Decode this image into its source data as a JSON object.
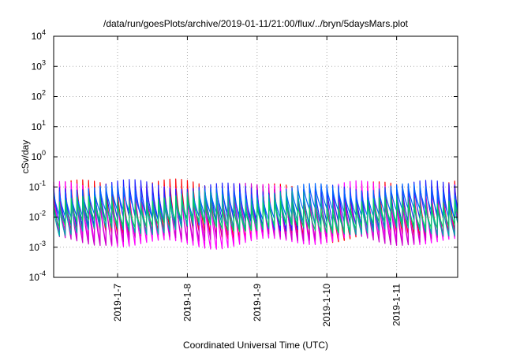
{
  "chart_data": {
    "type": "area",
    "title": "/data/run/goesPlots/archive/2019-01-11/21:00/flux/../bryn/5daysMars.plot",
    "xlabel": "Coordinated Universal Time (UTC)",
    "ylabel": "cSv/day",
    "yscale": "log",
    "ylim": [
      0.0001,
      10000
    ],
    "xlim": [
      "2019-01-06 02:00",
      "2019-01-11 21:00"
    ],
    "y_ticks": [
      {
        "base": "10",
        "exp": "4"
      },
      {
        "base": "10",
        "exp": "3"
      },
      {
        "base": "10",
        "exp": "2"
      },
      {
        "base": "10",
        "exp": "1"
      },
      {
        "base": "10",
        "exp": "0"
      },
      {
        "base": "10",
        "exp": "-1"
      },
      {
        "base": "10",
        "exp": "-2"
      },
      {
        "base": "10",
        "exp": "-3"
      },
      {
        "base": "10",
        "exp": "-4"
      }
    ],
    "x_ticks": [
      "2019-1-7",
      "2019-1-8",
      "2019-1-9",
      "2019-1-10",
      "2019-1-11"
    ],
    "grid": true,
    "legend": "none",
    "pulse_period_hours": 2,
    "series": [
      {
        "color": "#ff0000",
        "peak": 0.11,
        "trough": 0.0025
      },
      {
        "color": "#ff00ff",
        "peak": 0.09,
        "trough": 0.0015
      },
      {
        "color": "#cc00cc",
        "peak": 0.075,
        "trough": 0.002
      },
      {
        "color": "#2222ff",
        "peak": 0.1,
        "trough": 0.006
      },
      {
        "color": "#0066ff",
        "peak": 0.08,
        "trough": 0.012
      },
      {
        "color": "#00aaaa",
        "peak": 0.045,
        "trough": 0.004
      },
      {
        "color": "#00cc66",
        "peak": 0.03,
        "trough": 0.005
      }
    ]
  }
}
